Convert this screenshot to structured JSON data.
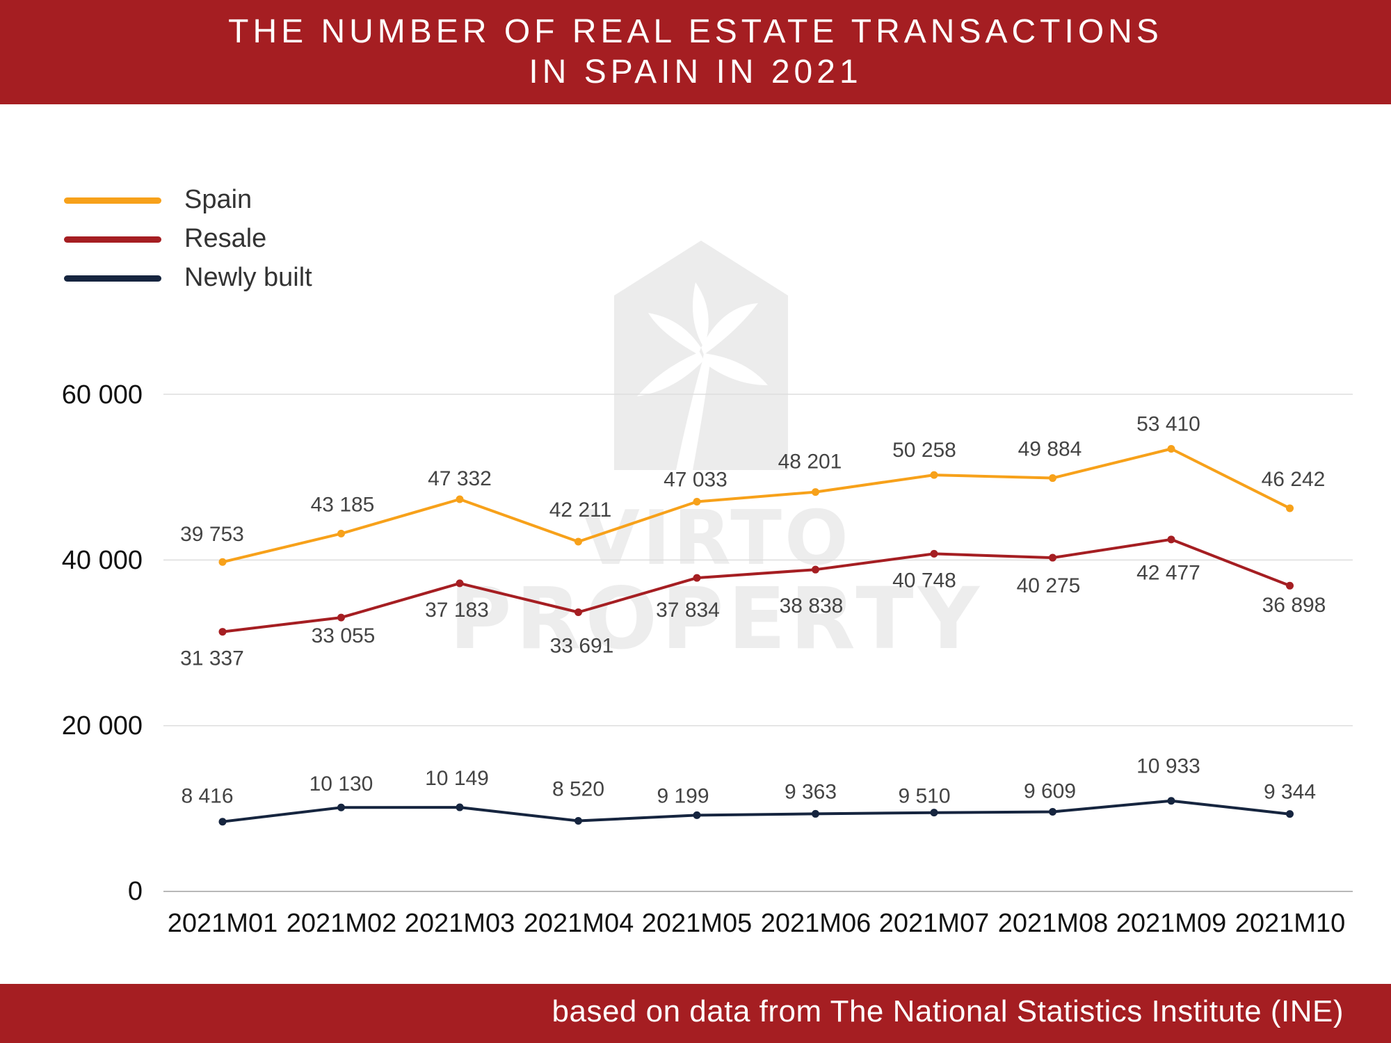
{
  "header": {
    "title_line1": "THE NUMBER OF REAL ESTATE TRANSACTIONS",
    "title_line2": "IN SPAIN IN 2021"
  },
  "footer": {
    "source": "based on data from The National Statistics Institute (INE)"
  },
  "watermark": {
    "line1": "VIRTO",
    "line2": "PROPERTY"
  },
  "colors": {
    "banner": "#A51E22",
    "spain": "#F7A11A",
    "resale": "#A51E22",
    "newly_built": "#16253F",
    "grid": "#DDDDDD",
    "watermark": "#D6D6D6"
  },
  "chart_data": {
    "type": "line",
    "title": "THE NUMBER OF REAL ESTATE TRANSACTIONS IN SPAIN IN 2021",
    "xlabel": "",
    "ylabel": "",
    "categories": [
      "2021M01",
      "2021M02",
      "2021M03",
      "2021M04",
      "2021M05",
      "2021M06",
      "2021M07",
      "2021M08",
      "2021M09",
      "2021M10"
    ],
    "ylim": [
      0,
      60000
    ],
    "yticks": [
      0,
      20000,
      40000,
      60000
    ],
    "ytick_labels": [
      "0",
      "20 000",
      "40 000",
      "60 000"
    ],
    "grid": true,
    "legend_position": "top-left",
    "series": [
      {
        "name": "Spain",
        "color": "#F7A11A",
        "values": [
          39753,
          43185,
          47332,
          42211,
          47033,
          48201,
          50258,
          49884,
          53410,
          46242
        ],
        "labels": [
          "39 753",
          "43 185",
          "47 332",
          "42 211",
          "47 033",
          "48 201",
          "50 258",
          "49 884",
          "53 410",
          "46 242"
        ]
      },
      {
        "name": "Resale",
        "color": "#A51E22",
        "values": [
          31337,
          33055,
          37183,
          33691,
          37834,
          38838,
          40748,
          40275,
          42477,
          36898
        ],
        "labels": [
          "31 337",
          "33 055",
          "37 183",
          "33 691",
          "37 834",
          "38 838",
          "40 748",
          "40 275",
          "42 477",
          "36 898"
        ]
      },
      {
        "name": "Newly built",
        "color": "#16253F",
        "values": [
          8416,
          10130,
          10149,
          8520,
          9199,
          9363,
          9510,
          9609,
          10933,
          9344
        ],
        "labels": [
          "8 416",
          "10 130",
          "10 149",
          "8 520",
          "9 199",
          "9 363",
          "9 510",
          "9 609",
          "10 933",
          "9 344"
        ]
      }
    ]
  }
}
